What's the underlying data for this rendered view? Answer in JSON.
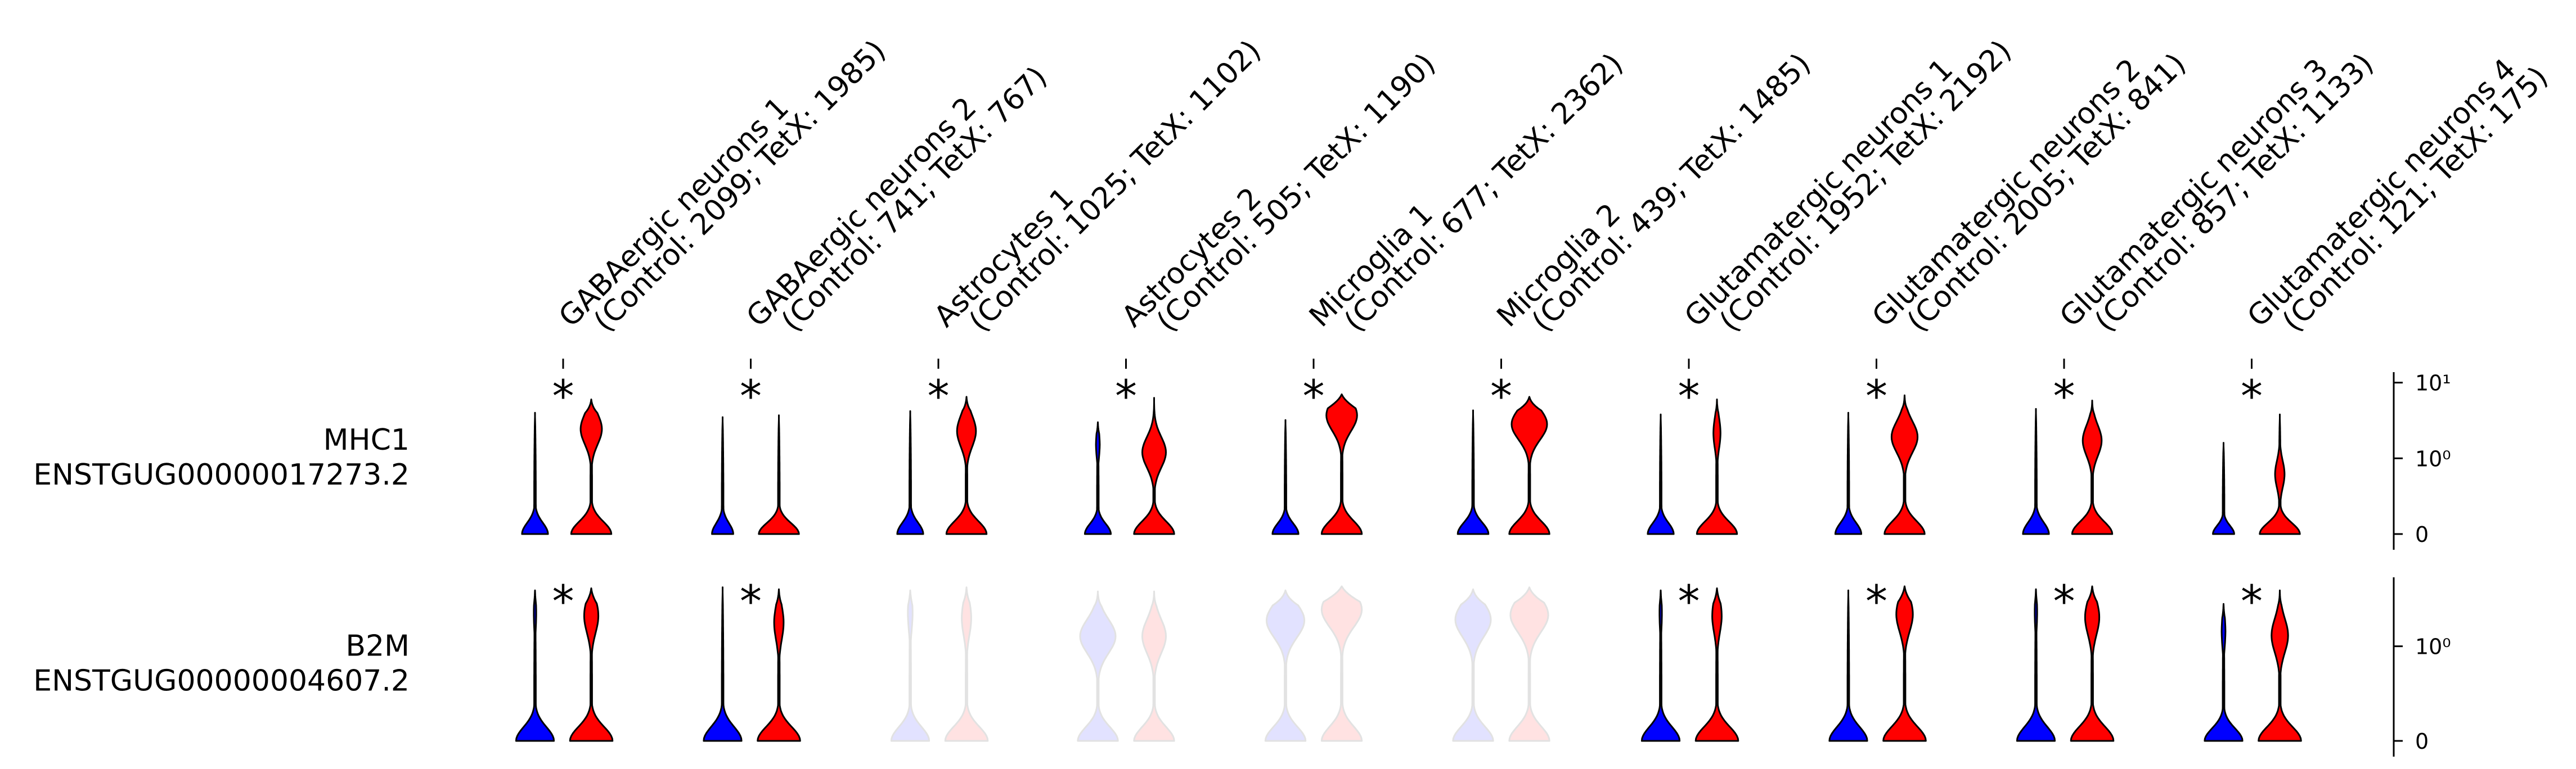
{
  "chart_data": {
    "type": "violin",
    "title": "",
    "colors": {
      "control": "#0000ff",
      "tetx": "#ff0000",
      "outline": "#000000"
    },
    "groups": [
      "Control",
      "TetX"
    ],
    "categories": [
      {
        "line1": "GABAergic neurons 1",
        "line2": "(Control: 2099; TetX: 1985)"
      },
      {
        "line1": "GABAergic neurons 2",
        "line2": "(Control: 741; TetX: 767)"
      },
      {
        "line1": "Astrocytes 1",
        "line2": "(Control: 1025; TetX: 1102)"
      },
      {
        "line1": "Astrocytes 2",
        "line2": "(Control: 505; TetX: 1190)"
      },
      {
        "line1": "Microglia 1",
        "line2": "(Control: 677; TetX: 2362)"
      },
      {
        "line1": "Microglia 2",
        "line2": "(Control: 439; TetX: 1485)"
      },
      {
        "line1": "Glutamatergic neurons 1",
        "line2": "(Control: 1952; TetX: 2192)"
      },
      {
        "line1": "Glutamatergic neurons 2",
        "line2": "(Control: 2005; TetX: 841)"
      },
      {
        "line1": "Glutamatergic neurons 3",
        "line2": "(Control: 857; TetX: 1133)"
      },
      {
        "line1": "Glutamatergic neurons 4",
        "line2": "(Control: 121; TetX: 175)"
      }
    ],
    "rows": [
      {
        "label1": "MHC1",
        "label2": "ENSTGUG00000017273.2",
        "y_scale": "symlog",
        "y_ticks": [
          {
            "value": 0,
            "label": "0"
          },
          {
            "value": 1,
            "label": "10⁰"
          },
          {
            "value": 10,
            "label": "10¹"
          }
        ],
        "ymax": 12,
        "significant": [
          true,
          true,
          true,
          true,
          true,
          true,
          true,
          true,
          true,
          true
        ],
        "faded": [
          false,
          false,
          false,
          false,
          false,
          false,
          false,
          false,
          false,
          false
        ],
        "violins": [
          {
            "control": {
              "max": 4.0,
              "base": 0.55,
              "bulge": 0
            },
            "tetx": {
              "max": 6.0,
              "base": 0.85,
              "bulge": 0.45,
              "bulge_at": 0.78
            }
          },
          {
            "control": {
              "max": 3.5,
              "base": 0.45,
              "bulge": 0
            },
            "tetx": {
              "max": 3.7,
              "base": 0.85,
              "bulge": 0
            }
          },
          {
            "control": {
              "max": 4.2,
              "base": 0.55,
              "bulge": 0
            },
            "tetx": {
              "max": 6.5,
              "base": 0.85,
              "bulge": 0.4,
              "bulge_at": 0.75
            }
          },
          {
            "control": {
              "max": 3.0,
              "base": 0.55,
              "bulge": 0.08,
              "bulge_at": 0.8
            },
            "tetx": {
              "max": 6.3,
              "base": 0.85,
              "bulge": 0.5,
              "bulge_at": 0.6
            }
          },
          {
            "control": {
              "max": 3.2,
              "base": 0.55,
              "bulge": 0
            },
            "tetx": {
              "max": 7.0,
              "base": 0.85,
              "bulge": 0.65,
              "bulge_at": 0.85
            }
          },
          {
            "control": {
              "max": 4.3,
              "base": 0.65,
              "bulge": 0
            },
            "tetx": {
              "max": 6.5,
              "base": 0.85,
              "bulge": 0.75,
              "bulge_at": 0.8
            }
          },
          {
            "control": {
              "max": 3.8,
              "base": 0.55,
              "bulge": 0
            },
            "tetx": {
              "max": 6.0,
              "base": 0.85,
              "bulge": 0.15,
              "bulge_at": 0.75
            }
          },
          {
            "control": {
              "max": 4.0,
              "base": 0.55,
              "bulge": 0
            },
            "tetx": {
              "max": 6.8,
              "base": 0.85,
              "bulge": 0.55,
              "bulge_at": 0.7
            }
          },
          {
            "control": {
              "max": 4.5,
              "base": 0.55,
              "bulge": 0
            },
            "tetx": {
              "max": 5.8,
              "base": 0.85,
              "bulge": 0.4,
              "bulge_at": 0.7
            }
          },
          {
            "control": {
              "max": 1.6,
              "base": 0.45,
              "bulge": 0
            },
            "tetx": {
              "max": 3.8,
              "base": 0.85,
              "bulge": 0.2,
              "bulge_at": 0.5
            }
          }
        ]
      },
      {
        "label1": "B2M",
        "label2": "ENSTGUG00000004607.2",
        "y_scale": "symlog",
        "y_ticks": [
          {
            "value": 0,
            "label": "0"
          },
          {
            "value": 1,
            "label": "10⁰"
          }
        ],
        "ymax": 4.8,
        "significant": [
          true,
          true,
          false,
          false,
          false,
          false,
          true,
          true,
          true,
          true
        ],
        "faded": [
          false,
          false,
          true,
          true,
          true,
          true,
          false,
          false,
          false,
          false
        ],
        "violins": [
          {
            "control": {
              "max": 3.9,
              "base": 0.8,
              "bulge": 0.05,
              "bulge_at": 0.85
            },
            "tetx": {
              "max": 4.1,
              "base": 0.9,
              "bulge": 0.3,
              "bulge_at": 0.82
            }
          },
          {
            "control": {
              "max": 4.2,
              "base": 0.8,
              "bulge": 0
            },
            "tetx": {
              "max": 4.0,
              "base": 0.9,
              "bulge": 0.2,
              "bulge_at": 0.78
            }
          },
          {
            "control": {
              "max": 3.9,
              "base": 0.8,
              "bulge": 0.1,
              "bulge_at": 0.85
            },
            "tetx": {
              "max": 4.2,
              "base": 0.9,
              "bulge": 0.2,
              "bulge_at": 0.8
            }
          },
          {
            "control": {
              "max": 3.8,
              "base": 0.85,
              "bulge": 0.75,
              "bulge_at": 0.7
            },
            "tetx": {
              "max": 3.8,
              "base": 0.85,
              "bulge": 0.5,
              "bulge_at": 0.7
            }
          },
          {
            "control": {
              "max": 3.9,
              "base": 0.85,
              "bulge": 0.8,
              "bulge_at": 0.8
            },
            "tetx": {
              "max": 4.3,
              "base": 0.85,
              "bulge": 0.85,
              "bulge_at": 0.85
            }
          },
          {
            "control": {
              "max": 4.0,
              "base": 0.85,
              "bulge": 0.75,
              "bulge_at": 0.8
            },
            "tetx": {
              "max": 4.2,
              "base": 0.85,
              "bulge": 0.8,
              "bulge_at": 0.82
            }
          },
          {
            "control": {
              "max": 3.9,
              "base": 0.8,
              "bulge": 0.05,
              "bulge_at": 0.85
            },
            "tetx": {
              "max": 4.1,
              "base": 0.9,
              "bulge": 0.2,
              "bulge_at": 0.82
            }
          },
          {
            "control": {
              "max": 3.9,
              "base": 0.8,
              "bulge": 0
            },
            "tetx": {
              "max": 4.3,
              "base": 0.9,
              "bulge": 0.35,
              "bulge_at": 0.82
            }
          },
          {
            "control": {
              "max": 4.0,
              "base": 0.8,
              "bulge": 0.05,
              "bulge_at": 0.85
            },
            "tetx": {
              "max": 4.3,
              "base": 0.9,
              "bulge": 0.3,
              "bulge_at": 0.8
            }
          },
          {
            "control": {
              "max": 2.8,
              "base": 0.8,
              "bulge": 0.08,
              "bulge_at": 0.8
            },
            "tetx": {
              "max": 3.9,
              "base": 0.9,
              "bulge": 0.35,
              "bulge_at": 0.7
            }
          }
        ]
      }
    ]
  }
}
